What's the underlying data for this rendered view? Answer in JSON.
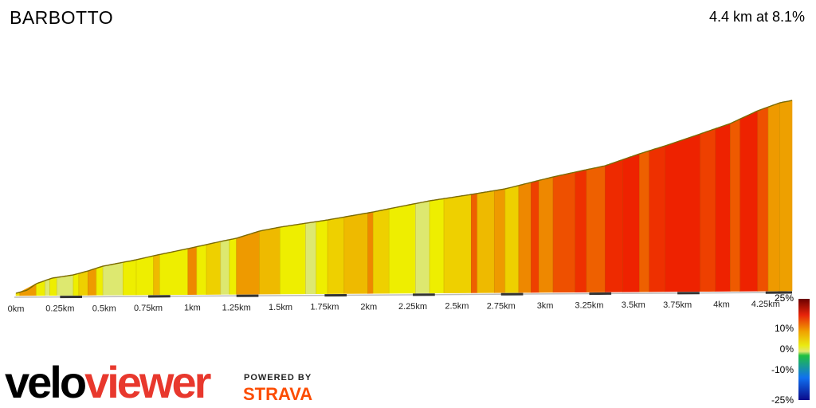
{
  "header": {
    "title": "BARBOTTO",
    "summary": "4.4 km at 8.1%"
  },
  "branding": {
    "logo_part1": "velo",
    "logo_part2": "viewer",
    "powered_by": "POWERED BY",
    "strava": "STRAVA"
  },
  "chart_data": {
    "type": "area",
    "x_tick_labels": [
      "0km",
      "0.25km",
      "0.5km",
      "0.75km",
      "1km",
      "1.25km",
      "1.5km",
      "1.75km",
      "2km",
      "2.25km",
      "2.5km",
      "2.75km",
      "3km",
      "3.25km",
      "3.5km",
      "3.75km",
      "4km",
      "4.25km"
    ],
    "x_ticks_km": [
      0,
      0.25,
      0.5,
      0.75,
      1,
      1.25,
      1.5,
      1.75,
      2,
      2.25,
      2.5,
      2.75,
      3,
      3.25,
      3.5,
      3.75,
      4,
      4.25
    ],
    "xlim_km": [
      0,
      4.4
    ],
    "elevation_relative_m": [
      0,
      4,
      14,
      22,
      34,
      46,
      63,
      70,
      88,
      103,
      121,
      131,
      150,
      166,
      172,
      183,
      198,
      217
    ],
    "gradient_legend": {
      "labels": [
        "25%",
        "10%",
        "0%",
        "-10%",
        "-25%"
      ],
      "colors": [
        "#6b0000",
        "#e8240a",
        "#f0a000",
        "#eaea10",
        "#e0e870",
        "#20c040",
        "#1070f0",
        "#0a0a8a"
      ]
    },
    "segments": [
      {
        "km_start": 0.0,
        "km_end": 0.022,
        "gradient": "#eee000"
      },
      {
        "km_start": 0.022,
        "km_end": 0.115,
        "gradient": "#ee9a00"
      },
      {
        "km_start": 0.115,
        "km_end": 0.165,
        "gradient": "#eeee00"
      },
      {
        "km_start": 0.165,
        "km_end": 0.192,
        "gradient": "#dde870"
      },
      {
        "km_start": 0.192,
        "km_end": 0.232,
        "gradient": "#eeee00"
      },
      {
        "km_start": 0.232,
        "km_end": 0.325,
        "gradient": "#dde870"
      },
      {
        "km_start": 0.325,
        "km_end": 0.356,
        "gradient": "#eeee00"
      },
      {
        "km_start": 0.356,
        "km_end": 0.408,
        "gradient": "#eed000"
      },
      {
        "km_start": 0.408,
        "km_end": 0.456,
        "gradient": "#ee9a00"
      },
      {
        "km_start": 0.456,
        "km_end": 0.493,
        "gradient": "#eeee00"
      },
      {
        "km_start": 0.493,
        "km_end": 0.607,
        "gradient": "#dde870"
      },
      {
        "km_start": 0.607,
        "km_end": 0.682,
        "gradient": "#eeee00"
      },
      {
        "km_start": 0.682,
        "km_end": 0.78,
        "gradient": "#eeee00"
      },
      {
        "km_start": 0.78,
        "km_end": 0.815,
        "gradient": "#eeba00"
      },
      {
        "km_start": 0.815,
        "km_end": 0.975,
        "gradient": "#eeee00"
      },
      {
        "km_start": 0.975,
        "km_end": 1.025,
        "gradient": "#ee8800"
      },
      {
        "km_start": 1.025,
        "km_end": 1.08,
        "gradient": "#eeee00"
      },
      {
        "km_start": 1.08,
        "km_end": 1.16,
        "gradient": "#eed000"
      },
      {
        "km_start": 1.16,
        "km_end": 1.21,
        "gradient": "#dde870"
      },
      {
        "km_start": 1.21,
        "km_end": 1.25,
        "gradient": "#eeee00"
      },
      {
        "km_start": 1.25,
        "km_end": 1.38,
        "gradient": "#ee9a00"
      },
      {
        "km_start": 1.38,
        "km_end": 1.497,
        "gradient": "#eeba00"
      },
      {
        "km_start": 1.497,
        "km_end": 1.642,
        "gradient": "#eeee00"
      },
      {
        "km_start": 1.642,
        "km_end": 1.702,
        "gradient": "#dde870"
      },
      {
        "km_start": 1.702,
        "km_end": 1.767,
        "gradient": "#eeee00"
      },
      {
        "km_start": 1.767,
        "km_end": 1.86,
        "gradient": "#eed000"
      },
      {
        "km_start": 1.86,
        "km_end": 1.995,
        "gradient": "#eeba00"
      },
      {
        "km_start": 1.995,
        "km_end": 2.025,
        "gradient": "#ee8800"
      },
      {
        "km_start": 2.025,
        "km_end": 2.115,
        "gradient": "#eed000"
      },
      {
        "km_start": 2.115,
        "km_end": 2.265,
        "gradient": "#eeee00"
      },
      {
        "km_start": 2.265,
        "km_end": 2.345,
        "gradient": "#dde870"
      },
      {
        "km_start": 2.345,
        "km_end": 2.426,
        "gradient": "#eeee00"
      },
      {
        "km_start": 2.426,
        "km_end": 2.581,
        "gradient": "#eed000"
      },
      {
        "km_start": 2.581,
        "km_end": 2.615,
        "gradient": "#ee6000"
      },
      {
        "km_start": 2.615,
        "km_end": 2.712,
        "gradient": "#eeba00"
      },
      {
        "km_start": 2.712,
        "km_end": 2.773,
        "gradient": "#ee9a00"
      },
      {
        "km_start": 2.773,
        "km_end": 2.85,
        "gradient": "#eed000"
      },
      {
        "km_start": 2.85,
        "km_end": 2.92,
        "gradient": "#ee8800"
      },
      {
        "km_start": 2.92,
        "km_end": 2.965,
        "gradient": "#ee4000"
      },
      {
        "km_start": 2.965,
        "km_end": 3.045,
        "gradient": "#ee8800"
      },
      {
        "km_start": 3.045,
        "km_end": 3.17,
        "gradient": "#ee5000"
      },
      {
        "km_start": 3.17,
        "km_end": 3.235,
        "gradient": "#ee3000"
      },
      {
        "km_start": 3.235,
        "km_end": 3.34,
        "gradient": "#ee6000"
      },
      {
        "km_start": 3.34,
        "km_end": 3.44,
        "gradient": "#ee2a00"
      },
      {
        "km_start": 3.44,
        "km_end": 3.535,
        "gradient": "#ee2200"
      },
      {
        "km_start": 3.535,
        "km_end": 3.59,
        "gradient": "#ee6000"
      },
      {
        "km_start": 3.59,
        "km_end": 3.68,
        "gradient": "#ee3000"
      },
      {
        "km_start": 3.68,
        "km_end": 3.88,
        "gradient": "#ee2200"
      },
      {
        "km_start": 3.88,
        "km_end": 3.965,
        "gradient": "#ee4000"
      },
      {
        "km_start": 3.965,
        "km_end": 4.05,
        "gradient": "#ee2200"
      },
      {
        "km_start": 4.05,
        "km_end": 4.105,
        "gradient": "#ee5a00"
      },
      {
        "km_start": 4.105,
        "km_end": 4.205,
        "gradient": "#ee2200"
      },
      {
        "km_start": 4.205,
        "km_end": 4.265,
        "gradient": "#ee5000"
      },
      {
        "km_start": 4.265,
        "km_end": 4.33,
        "gradient": "#ee9a00"
      },
      {
        "km_start": 4.33,
        "km_end": 4.4,
        "gradient": "#eea000"
      }
    ]
  }
}
